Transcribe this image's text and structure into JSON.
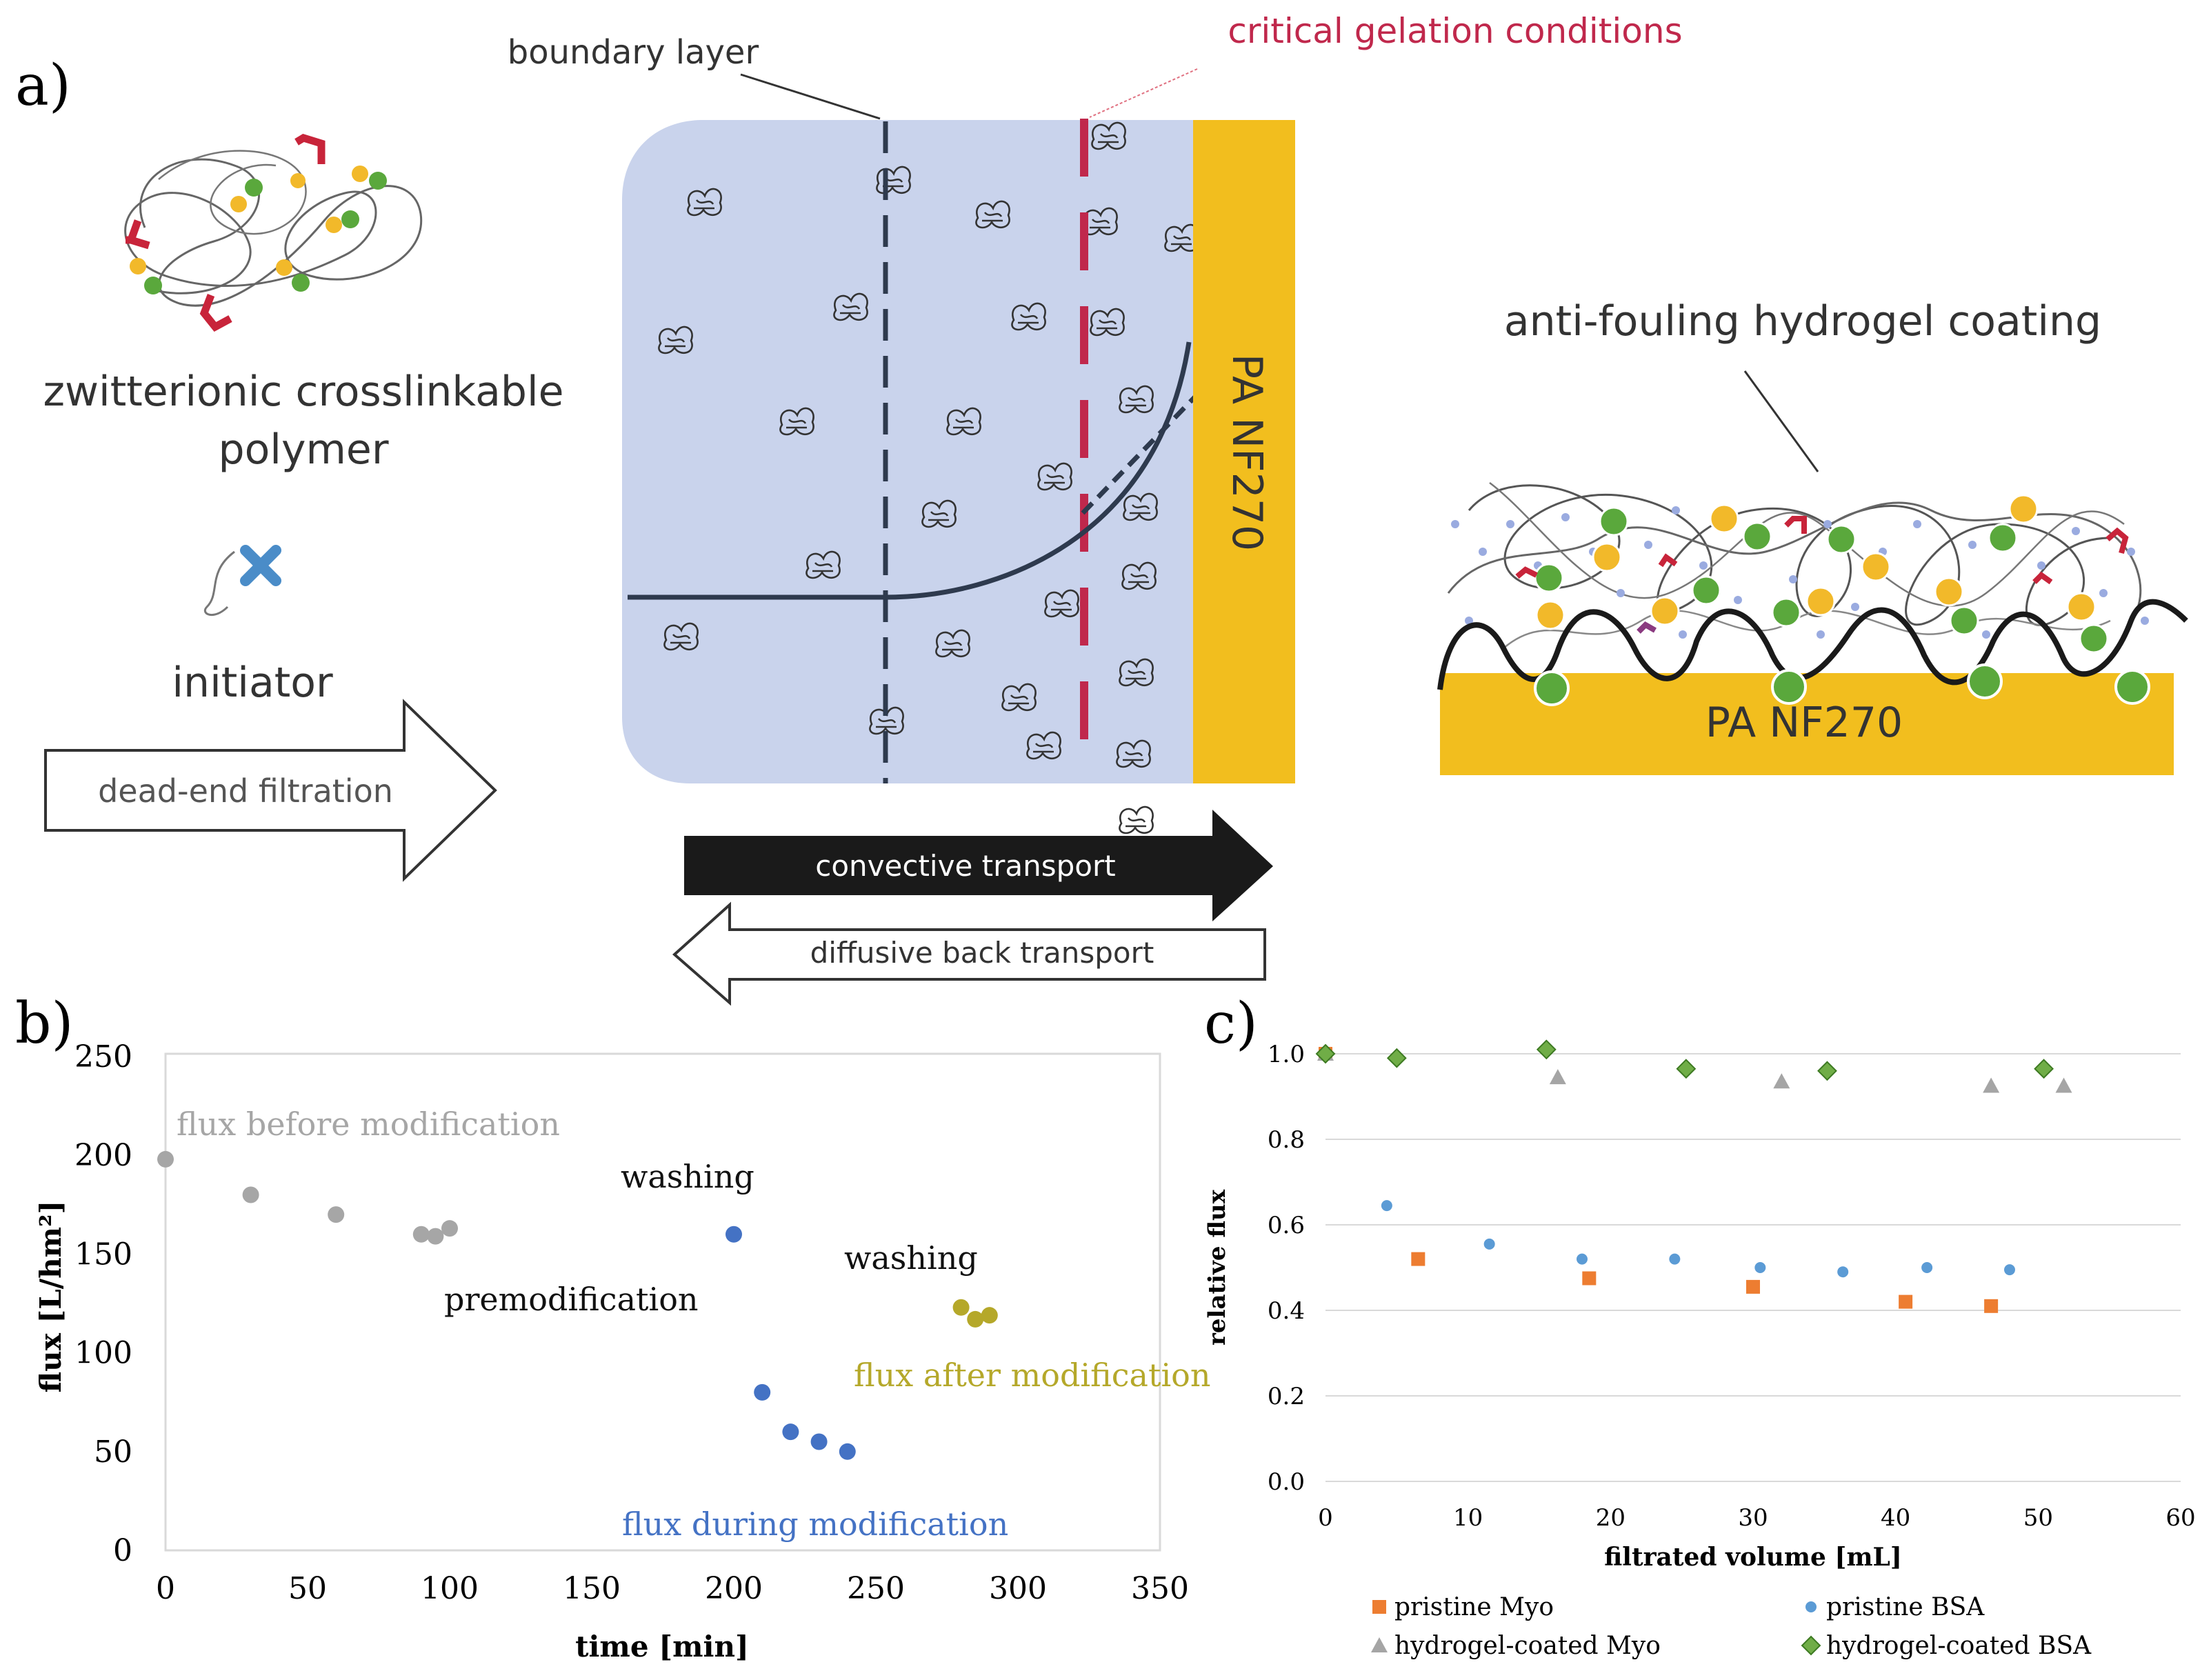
{
  "panel_a": {
    "label": "a)",
    "polymer_label_line1": "zwitterionic crosslinkable",
    "polymer_label_line2": "polymer",
    "initiator_label": "initiator",
    "dead_end_label": "dead-end filtration",
    "boundary_layer_label": "boundary layer",
    "critical_label": "critical gelation conditions",
    "membrane_label": "PA NF270",
    "convective_label": "convective transport",
    "diffusive_label": "diffusive back transport",
    "coating_label": "anti-fouling hydrogel coating",
    "coated_membrane_label": "PA NF270",
    "colors": {
      "feed": "#c9d3ec",
      "membrane": "#f2be1e",
      "critical": "#c0284c",
      "green": "#5aa83c",
      "yellow": "#f2b92a",
      "red": "#c8243a",
      "dot": "#9aabe0"
    }
  },
  "panel_b": {
    "label": "b)",
    "annotations": {
      "before": "flux before modification",
      "washing1": "washing",
      "premod": "premodification",
      "washing2": "washing",
      "after": "flux after modification",
      "during": "flux during modification"
    },
    "chart_data": {
      "type": "scatter",
      "title": "",
      "xlabel": "time [min]",
      "ylabel": "flux [L/hm²]",
      "xlim": [
        0,
        350
      ],
      "ylim": [
        0,
        250
      ],
      "xticks": [
        "0",
        "50",
        "100",
        "150",
        "200",
        "250",
        "300",
        "350"
      ],
      "yticks": [
        "0",
        "50",
        "100",
        "150",
        "200",
        "250"
      ],
      "series": [
        {
          "name": "flux before modification",
          "color": "#a6a6a6",
          "points": [
            [
              0,
              198
            ],
            [
              30,
              180
            ],
            [
              60,
              170
            ],
            [
              90,
              160
            ],
            [
              95,
              159
            ],
            [
              100,
              163
            ]
          ]
        },
        {
          "name": "flux during modification",
          "color": "#4472c4",
          "points": [
            [
              200,
              160
            ],
            [
              210,
              80
            ],
            [
              220,
              60
            ],
            [
              230,
              55
            ],
            [
              240,
              50
            ]
          ]
        },
        {
          "name": "flux after modification",
          "color": "#b5a82a",
          "points": [
            [
              280,
              123
            ],
            [
              285,
              117
            ],
            [
              290,
              119
            ]
          ]
        }
      ]
    }
  },
  "panel_c": {
    "label": "c)",
    "chart_data": {
      "type": "scatter",
      "title": "",
      "xlabel": "filtrated volume [mL]",
      "ylabel": "relative flux",
      "xlim": [
        0,
        60
      ],
      "ylim": [
        0,
        1.0
      ],
      "xticks": [
        "0",
        "10",
        "20",
        "30",
        "40",
        "50",
        "60"
      ],
      "yticks": [
        "0.0",
        "0.2",
        "0.4",
        "0.6",
        "0.8",
        "1.0"
      ],
      "series": [
        {
          "name": "pristine Myo",
          "marker": "square",
          "color": "#ed7d31",
          "points": [
            [
              0,
              1.0
            ],
            [
              6.5,
              0.52
            ],
            [
              18.5,
              0.475
            ],
            [
              30,
              0.455
            ],
            [
              40.7,
              0.42
            ],
            [
              46.7,
              0.41
            ]
          ]
        },
        {
          "name": "pristine BSA",
          "marker": "circle",
          "color": "#5b9bd5",
          "points": [
            [
              0,
              1.0
            ],
            [
              4.3,
              0.645
            ],
            [
              11.5,
              0.555
            ],
            [
              18,
              0.52
            ],
            [
              24.5,
              0.52
            ],
            [
              30.5,
              0.5
            ],
            [
              36.3,
              0.49
            ],
            [
              42.2,
              0.5
            ],
            [
              48,
              0.495
            ]
          ]
        },
        {
          "name": "hydrogel-coated Myo",
          "marker": "triangle",
          "color": "#a5a5a5",
          "points": [
            [
              0,
              1.0
            ],
            [
              16.3,
              0.945
            ],
            [
              32,
              0.935
            ],
            [
              46.7,
              0.925
            ],
            [
              51.8,
              0.925
            ]
          ]
        },
        {
          "name": "hydrogel-coated BSA",
          "marker": "diamond",
          "color": "#70ad47",
          "points": [
            [
              0,
              1.0
            ],
            [
              5,
              0.99
            ],
            [
              15.5,
              1.01
            ],
            [
              25.3,
              0.965
            ],
            [
              35.2,
              0.96
            ],
            [
              50.4,
              0.965
            ]
          ]
        }
      ]
    }
  }
}
